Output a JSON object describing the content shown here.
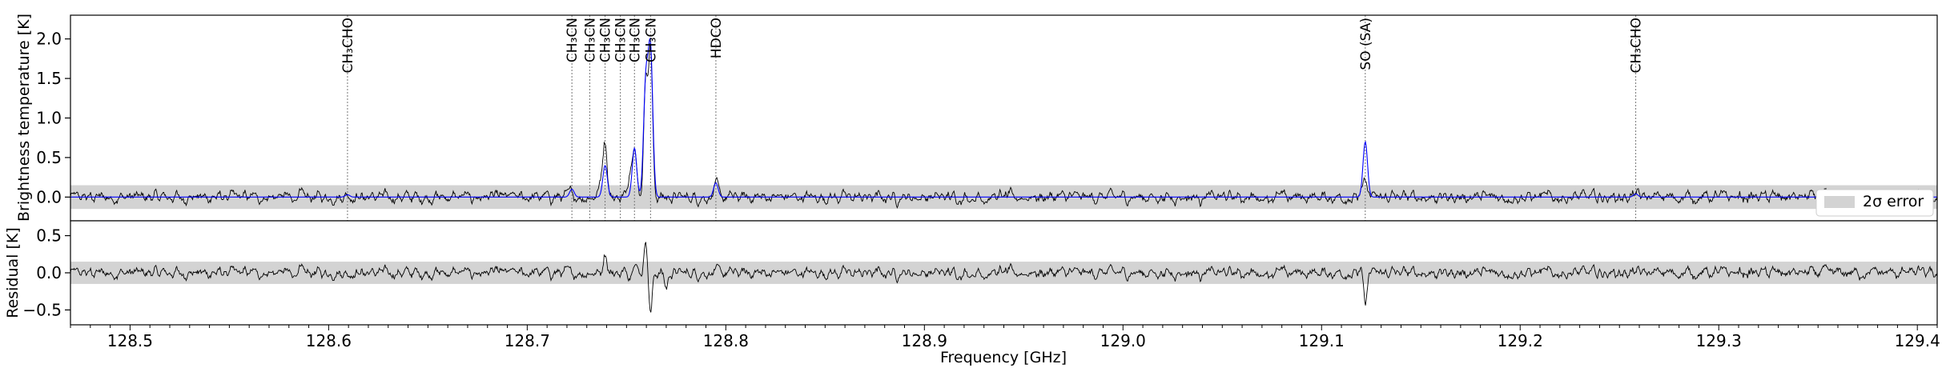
{
  "chart_data": [
    {
      "type": "line",
      "panel": "top",
      "xlabel": "",
      "ylabel": "Brightness temperature [K]",
      "xlim": [
        128.47,
        129.41
      ],
      "ylim": [
        -0.3,
        2.3
      ],
      "yticks": [
        0.0,
        0.5,
        1.0,
        1.5,
        2.0
      ],
      "ytick_labels": [
        "0.0",
        "0.5",
        "1.0",
        "1.5",
        "2.0"
      ],
      "error_band": [
        -0.15,
        0.15
      ],
      "legend": {
        "placement": "lower-right",
        "entries": [
          "2σ error"
        ]
      },
      "colors": {
        "observed": "#000000",
        "model": "#0000ff",
        "band": "#d3d3d3"
      },
      "series": [
        {
          "name": "",
          "peaks": [
            [
              128.6095,
              0.05
            ],
            [
              128.7225,
              0.08
            ],
            [
              128.7372,
              0.22
            ],
            [
              128.7392,
              0.72
            ],
            [
              128.7517,
              0.35
            ],
            [
              128.754,
              0.7
            ],
            [
              128.7597,
              1.5
            ],
            [
              128.7621,
              1.85
            ],
            [
              128.795,
              0.15
            ],
            [
              129.122,
              0.22
            ],
            [
              129.2582,
              0.04
            ]
          ]
        },
        {
          "name": "",
          "peaks": [
            [
              128.6095,
              0.03
            ],
            [
              128.7225,
              0.1
            ],
            [
              128.7392,
              0.4
            ],
            [
              128.754,
              0.62
            ],
            [
              128.7597,
              1.42
            ],
            [
              128.7621,
              1.82
            ],
            [
              128.795,
              0.18
            ],
            [
              129.122,
              0.7
            ],
            [
              129.2582,
              0.04
            ]
          ]
        }
      ],
      "annotations": [
        {
          "x": 128.6095,
          "label": "CH₃CHO"
        },
        {
          "x": 128.7225,
          "label": "CH₃CN"
        },
        {
          "x": 128.7315,
          "label": "CH₃CN"
        },
        {
          "x": 128.7392,
          "label": "CH₃CN"
        },
        {
          "x": 128.7469,
          "label": "CH₃CN"
        },
        {
          "x": 128.754,
          "label": "CH₃CN"
        },
        {
          "x": 128.7621,
          "label": "CH₃CN"
        },
        {
          "x": 128.795,
          "label": "HDCO"
        },
        {
          "x": 129.122,
          "label": "SO (SA)"
        },
        {
          "x": 129.2582,
          "label": "CH₃CHO"
        }
      ]
    },
    {
      "type": "line",
      "panel": "bottom",
      "xlabel": "Frequency [GHz]",
      "ylabel": "Residual [K]",
      "xlim": [
        128.47,
        129.41
      ],
      "ylim": [
        -0.7,
        0.7
      ],
      "yticks": [
        -0.5,
        0.0,
        0.5
      ],
      "ytick_labels": [
        "−0.5",
        "0.0",
        "0.5"
      ],
      "xticks": [
        128.5,
        128.6,
        128.7,
        128.8,
        128.9,
        129.0,
        129.1,
        129.2,
        129.3,
        129.4
      ],
      "xtick_labels": [
        "128.5",
        "128.6",
        "128.7",
        "128.8",
        "128.9",
        "129.0",
        "129.1",
        "129.2",
        "129.3",
        "129.4"
      ],
      "error_band": [
        -0.15,
        0.15
      ],
      "colors": {
        "residual": "#000000",
        "band": "#d3d3d3"
      },
      "series": [
        {
          "name": "",
          "features": [
            [
              128.7392,
              0.3
            ],
            [
              128.754,
              0.2
            ],
            [
              128.7597,
              0.45
            ],
            [
              128.7621,
              -0.55
            ],
            [
              128.77,
              -0.2
            ],
            [
              129.122,
              -0.42
            ]
          ]
        }
      ]
    }
  ]
}
